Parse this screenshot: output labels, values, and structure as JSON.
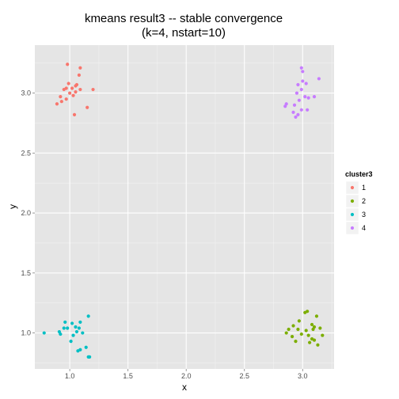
{
  "colors": {
    "panel_bg": "#e5e5e5",
    "grid_major": "#ffffff",
    "grid_minor": "#f2f2f2",
    "legend_key_bg": "#f2f2f2"
  },
  "chart_data": {
    "type": "scatter",
    "title_line1": "kmeans result3 -- stable convergence",
    "title_line2": "(k=4, nstart=10)",
    "xlabel": "x",
    "ylabel": "y",
    "xlim": [
      0.7,
      3.27
    ],
    "ylim": [
      0.7,
      3.4
    ],
    "x_ticks": [
      1.0,
      1.5,
      2.0,
      2.5,
      3.0
    ],
    "x_tick_labels": [
      "1.0",
      "1.5",
      "2.0",
      "2.5",
      "3.0"
    ],
    "y_ticks": [
      1.0,
      1.5,
      2.0,
      2.5,
      3.0
    ],
    "y_tick_labels": [
      "1.0",
      "1.5",
      "2.0",
      "2.5",
      "3.0"
    ],
    "grid": true,
    "legend": {
      "title": "cluster3",
      "placement": "right"
    },
    "series": [
      {
        "name": "1",
        "color": "#f8766d",
        "points": [
          [
            0.98,
            3.24
          ],
          [
            1.09,
            3.21
          ],
          [
            1.08,
            3.15
          ],
          [
            0.99,
            3.08
          ],
          [
            1.06,
            3.07
          ],
          [
            0.97,
            3.04
          ],
          [
            1.02,
            3.04
          ],
          [
            1.05,
            3.06
          ],
          [
            1.09,
            3.03
          ],
          [
            1.2,
            3.03
          ],
          [
            0.95,
            3.03
          ],
          [
            1.0,
            3.0
          ],
          [
            0.92,
            2.97
          ],
          [
            0.97,
            2.95
          ],
          [
            1.03,
            2.98
          ],
          [
            1.05,
            3.01
          ],
          [
            0.89,
            2.91
          ],
          [
            0.93,
            2.93
          ],
          [
            1.15,
            2.88
          ],
          [
            1.04,
            2.82
          ]
        ]
      },
      {
        "name": "2",
        "color": "#7cae00",
        "points": [
          [
            3.02,
            1.17
          ],
          [
            3.04,
            1.18
          ],
          [
            3.12,
            1.14
          ],
          [
            2.97,
            1.1
          ],
          [
            2.92,
            1.06
          ],
          [
            3.08,
            1.07
          ],
          [
            3.1,
            1.05
          ],
          [
            2.88,
            1.03
          ],
          [
            2.96,
            1.03
          ],
          [
            3.03,
            1.02
          ],
          [
            3.09,
            1.03
          ],
          [
            3.15,
            1.04
          ],
          [
            2.86,
            1.0
          ],
          [
            2.99,
            0.99
          ],
          [
            3.05,
            0.98
          ],
          [
            3.17,
            0.98
          ],
          [
            2.91,
            0.97
          ],
          [
            3.08,
            0.95
          ],
          [
            2.94,
            0.93
          ],
          [
            3.06,
            0.92
          ],
          [
            3.13,
            0.9
          ],
          [
            3.1,
            0.94
          ]
        ]
      },
      {
        "name": "3",
        "color": "#00bfc4",
        "points": [
          [
            1.16,
            1.14
          ],
          [
            0.96,
            1.09
          ],
          [
            1.09,
            1.09
          ],
          [
            1.02,
            1.08
          ],
          [
            1.05,
            1.05
          ],
          [
            0.95,
            1.04
          ],
          [
            0.98,
            1.04
          ],
          [
            1.08,
            1.04
          ],
          [
            0.91,
            1.01
          ],
          [
            1.06,
            1.01
          ],
          [
            0.78,
            1.0
          ],
          [
            0.92,
            0.99
          ],
          [
            1.11,
            1.0
          ],
          [
            1.03,
            0.98
          ],
          [
            1.01,
            0.93
          ],
          [
            1.14,
            0.88
          ],
          [
            1.09,
            0.86
          ],
          [
            1.07,
            0.85
          ],
          [
            1.16,
            0.8
          ],
          [
            1.17,
            0.8
          ]
        ]
      },
      {
        "name": "4",
        "color": "#c77cff",
        "points": [
          [
            2.99,
            3.21
          ],
          [
            3.0,
            3.18
          ],
          [
            3.14,
            3.12
          ],
          [
            3.0,
            3.1
          ],
          [
            3.03,
            3.08
          ],
          [
            2.96,
            3.07
          ],
          [
            2.99,
            3.03
          ],
          [
            2.95,
            3.0
          ],
          [
            3.02,
            2.97
          ],
          [
            3.05,
            2.96
          ],
          [
            3.1,
            2.97
          ],
          [
            2.97,
            2.94
          ],
          [
            2.86,
            2.91
          ],
          [
            2.85,
            2.89
          ],
          [
            2.93,
            2.9
          ],
          [
            2.99,
            2.86
          ],
          [
            3.04,
            2.86
          ],
          [
            2.92,
            2.84
          ],
          [
            2.96,
            2.82
          ],
          [
            2.94,
            2.8
          ]
        ]
      }
    ]
  }
}
